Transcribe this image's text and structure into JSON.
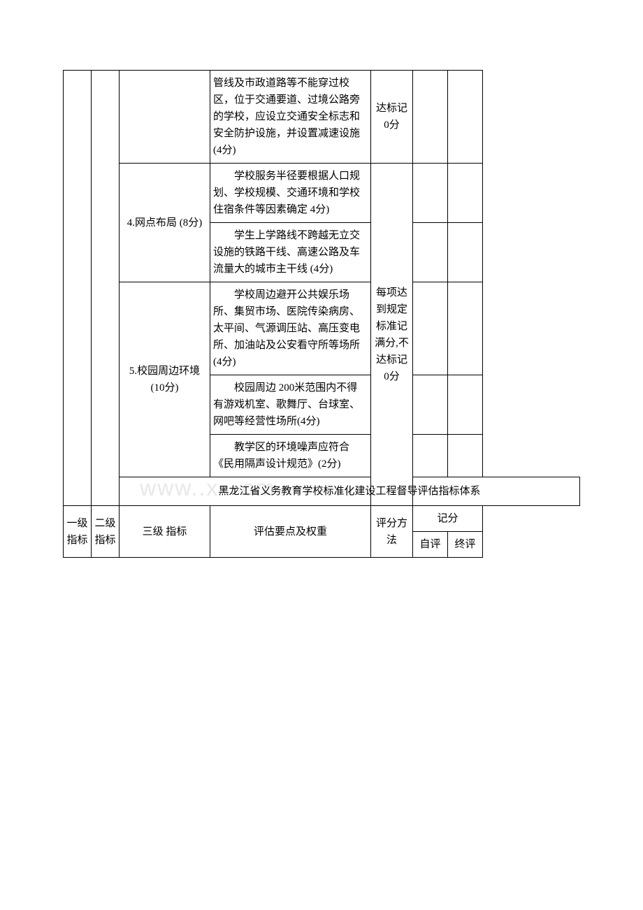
{
  "table1": {
    "row1": {
      "content": "管线及市政道路等不能穿过校区，位于交通要道、过境公路旁的学校，应设立交通安全标志和安全防护设施，并设置减速设施(4分)",
      "score": "达标记 0分"
    },
    "row2": {
      "l3": "4.网点布局 (8分)",
      "content_a": "学校服务半径要根据人口规划、学校规模、交通环境和学校住宿条件等因素确定 4分)",
      "content_b": "学生上学路线不跨越无立交设施的铁路干线、高速公路及车流量大的城市主干线 (4分)"
    },
    "row3": {
      "l3": "5.校园周边环境 (10分)",
      "content_a": "学校周边避开公共娱乐场所、集贸市场、医院传染病房、太平间、气源调压站、高压变电所、加油站及公安看守所等场所(4分)",
      "content_b": "校园周边 200米范围内不得有游戏机室、歌舞厅、台球室、网吧等经营性场所(4分)",
      "content_c": "教学区的环境噪声应符合《民用隔声设计规范》(2分)"
    },
    "merged_score": "每项达到规定标准记满分,不达标记0分"
  },
  "title": "黑龙江省义务教育学校标准化建设工程督导评估指标体系",
  "table2": {
    "headers": {
      "l1": "一级指标",
      "l2": "二级 指标",
      "l3": "三级 指标",
      "content": "评估要点及权重",
      "method": "评分方法",
      "score_group": "记分",
      "self": "自评",
      "final": "终评"
    }
  },
  "style": {
    "font_family": "SimSun",
    "font_size_pt": 11,
    "border_color": "#000000",
    "background_color": "#ffffff",
    "text_color": "#000000"
  }
}
